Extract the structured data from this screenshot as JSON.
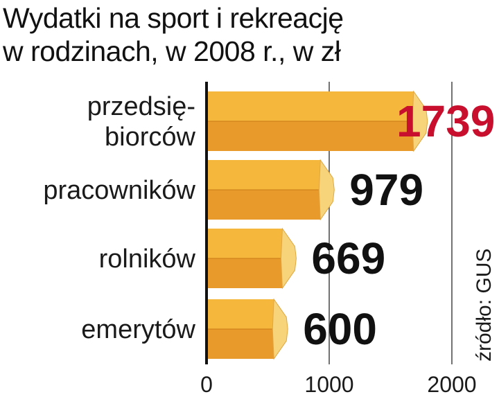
{
  "title_line1": "Wydatki na sport i rekreację",
  "title_line2": "w rodzinach, w 2008 r., w zł",
  "source": "źródło: GUS",
  "colors": {
    "bar_top": "#f5b83d",
    "bar_bottom": "#e89a2a",
    "bar_cap": "#f7d37a",
    "highlight_value": "#c8102e",
    "value": "#111111",
    "axis": "#111111",
    "grid": "#444444"
  },
  "chart_data": {
    "type": "bar",
    "orientation": "horizontal",
    "categories": [
      [
        "przedsię-",
        "biorców"
      ],
      [
        "pracowników"
      ],
      [
        "rolników"
      ],
      [
        "emerytów"
      ]
    ],
    "values": [
      1739,
      979,
      669,
      600
    ],
    "value_labels": [
      "1739",
      "979",
      "669",
      "600"
    ],
    "xlim": [
      0,
      2000
    ],
    "xticks": [
      0,
      1000,
      2000
    ],
    "xtick_labels": [
      "0",
      "1000",
      "2000"
    ],
    "grid": true
  }
}
